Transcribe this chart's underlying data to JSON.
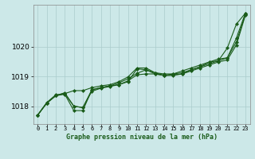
{
  "title": "Graphe pression niveau de la mer (hPa)",
  "bg_color": "#cce8e8",
  "grid_color": "#aacccc",
  "line_color": "#1a5c1a",
  "marker_color": "#1a5c1a",
  "xlim": [
    -0.5,
    23.5
  ],
  "ylim": [
    1017.4,
    1021.4
  ],
  "yticks": [
    1018,
    1019,
    1020
  ],
  "xticks": [
    0,
    1,
    2,
    3,
    4,
    5,
    6,
    7,
    8,
    9,
    10,
    11,
    12,
    13,
    14,
    15,
    16,
    17,
    18,
    19,
    20,
    21,
    22,
    23
  ],
  "series1": [
    1017.7,
    1018.1,
    1018.35,
    1018.4,
    1017.85,
    1017.85,
    1018.55,
    1018.62,
    1018.68,
    1018.72,
    1018.82,
    1019.25,
    1019.22,
    1019.08,
    1019.03,
    1019.05,
    1019.08,
    1019.18,
    1019.28,
    1019.38,
    1019.48,
    1019.55,
    1020.05,
    1021.05
  ],
  "series2": [
    1017.7,
    1018.1,
    1018.35,
    1018.42,
    1018.0,
    1017.95,
    1018.5,
    1018.6,
    1018.66,
    1018.72,
    1018.85,
    1019.05,
    1019.08,
    1019.08,
    1019.03,
    1019.08,
    1019.12,
    1019.22,
    1019.32,
    1019.42,
    1019.52,
    1019.62,
    1020.15,
    1021.08
  ],
  "series3": [
    1017.7,
    1018.1,
    1018.35,
    1018.45,
    1018.0,
    1017.95,
    1018.55,
    1018.62,
    1018.68,
    1018.78,
    1018.92,
    1019.1,
    1019.22,
    1019.12,
    1019.08,
    1019.08,
    1019.18,
    1019.28,
    1019.38,
    1019.48,
    1019.58,
    1019.62,
    1020.28,
    1021.12
  ],
  "series4": [
    1017.7,
    1018.12,
    1018.38,
    1018.42,
    1018.52,
    1018.52,
    1018.62,
    1018.68,
    1018.72,
    1018.82,
    1018.98,
    1019.28,
    1019.28,
    1019.12,
    1019.03,
    1019.03,
    1019.08,
    1019.22,
    1019.32,
    1019.48,
    1019.52,
    1019.95,
    1020.75,
    1021.12
  ]
}
